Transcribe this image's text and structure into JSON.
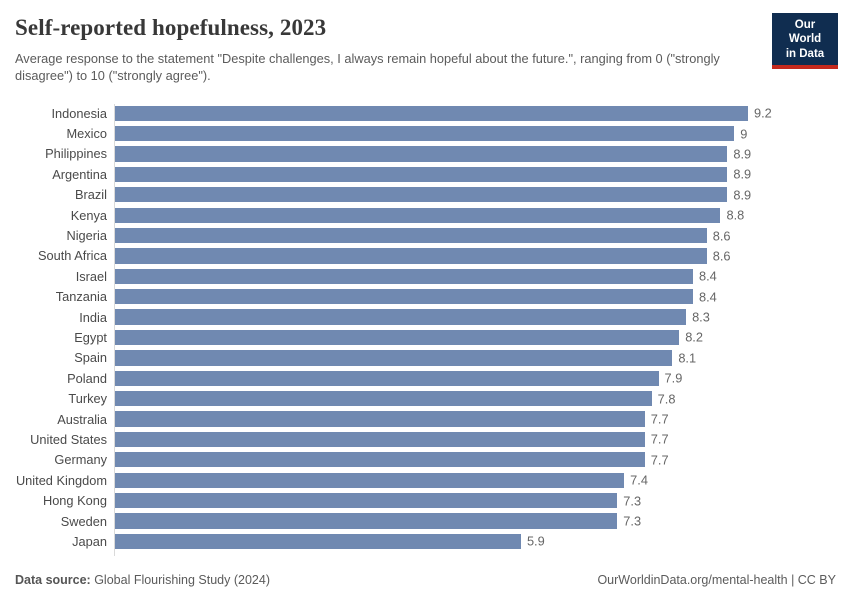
{
  "header": {
    "title": "Self-reported hopefulness, 2023",
    "subtitle": "Average response to the statement \"Despite challenges, I always remain hopeful about the future.\", ranging from 0 (\"strongly disagree\") to 10 (\"strongly agree\").",
    "logo": {
      "line1": "Our World",
      "line2": "in Data"
    }
  },
  "chart_data": {
    "type": "bar",
    "orientation": "horizontal",
    "title": "Self-reported hopefulness, 2023",
    "categories": [
      "Indonesia",
      "Mexico",
      "Philippines",
      "Argentina",
      "Brazil",
      "Kenya",
      "Nigeria",
      "South Africa",
      "Israel",
      "Tanzania",
      "India",
      "Egypt",
      "Spain",
      "Poland",
      "Turkey",
      "Australia",
      "United States",
      "Germany",
      "United Kingdom",
      "Hong Kong",
      "Sweden",
      "Japan"
    ],
    "values": [
      9.2,
      9,
      8.9,
      8.9,
      8.9,
      8.8,
      8.6,
      8.6,
      8.4,
      8.4,
      8.3,
      8.2,
      8.1,
      7.9,
      7.8,
      7.7,
      7.7,
      7.7,
      7.4,
      7.3,
      7.3,
      5.9
    ],
    "xlabel": "",
    "ylabel": "",
    "xlim": [
      0,
      9.2
    ],
    "grid": false,
    "value_labels": true,
    "legend": "none"
  },
  "footer": {
    "source_label": "Data source:",
    "source_text": " Global Flourishing Study (2024)",
    "link_text": "OurWorldinData.org/mental-health | CC BY"
  },
  "colors": {
    "bar": "#7089b1",
    "logo_navy": "#102d50",
    "logo_red": "#c5291d",
    "axis_line": "#dadada"
  }
}
